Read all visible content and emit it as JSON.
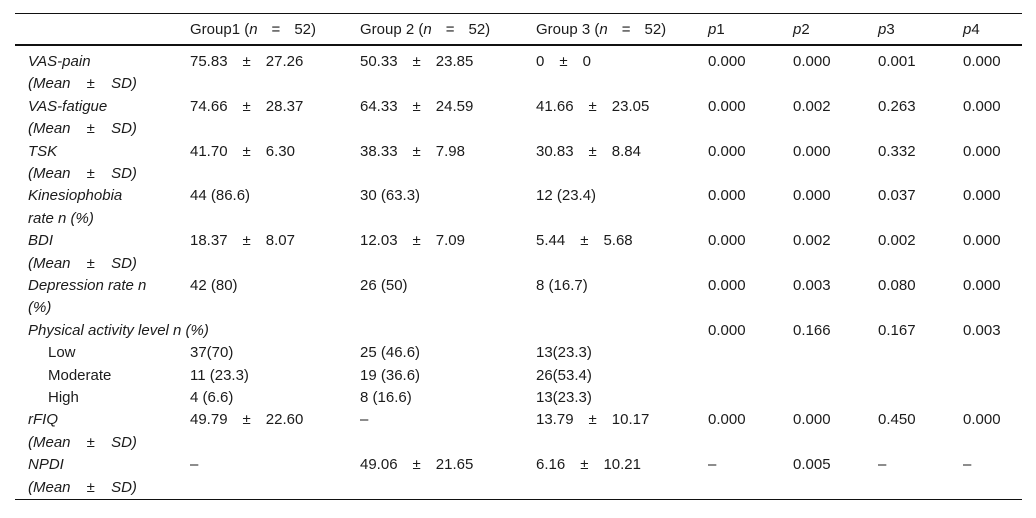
{
  "table": {
    "pm_symbol": "±",
    "colors": {
      "text": "#1b1b1b",
      "rule": "#111111",
      "background": "#ffffff"
    },
    "header": {
      "measure": "",
      "groups": [
        {
          "prefix": "Group1 (",
          "var": "n",
          "eq": "=",
          "count": "52)"
        },
        {
          "prefix": "Group 2 (",
          "var": "n",
          "eq": "=",
          "count": "52)"
        },
        {
          "prefix": "Group 3 (",
          "var": "n",
          "eq": "=",
          "count": "52)"
        }
      ],
      "p_columns": [
        {
          "var": "p",
          "index": "1"
        },
        {
          "var": "p",
          "index": "2"
        },
        {
          "var": "p",
          "index": "3"
        },
        {
          "var": "p",
          "index": "4"
        }
      ]
    },
    "rows": [
      {
        "label_lines": [
          "VAS-pain",
          "(Mean ± SD)"
        ],
        "italic": true,
        "indent": false,
        "groups": [
          {
            "mean": "75.83",
            "sd": "27.26"
          },
          {
            "mean": "50.33",
            "sd": "23.85"
          },
          {
            "mean": "0",
            "sd": "0"
          }
        ],
        "p": [
          "0.000",
          "0.000",
          "0.001",
          "0.000"
        ]
      },
      {
        "label_lines": [
          "VAS-fatigue",
          "(Mean ± SD)"
        ],
        "italic": true,
        "indent": false,
        "groups": [
          {
            "mean": "74.66",
            "sd": "28.37"
          },
          {
            "mean": "64.33",
            "sd": "24.59"
          },
          {
            "mean": "41.66",
            "sd": "23.05"
          }
        ],
        "p": [
          "0.000",
          "0.002",
          "0.263",
          "0.000"
        ]
      },
      {
        "label_lines": [
          "TSK",
          "(Mean ± SD)"
        ],
        "italic": true,
        "indent": false,
        "groups": [
          {
            "mean": "41.70",
            "sd": "6.30"
          },
          {
            "mean": "38.33",
            "sd": "7.98"
          },
          {
            "mean": "30.83",
            "sd": "8.84"
          }
        ],
        "p": [
          "0.000",
          "0.000",
          "0.332",
          "0.000"
        ]
      },
      {
        "label_lines": [
          "Kinesiophobia",
          "rate n (%)"
        ],
        "italic": true,
        "indent": false,
        "groups": [
          {
            "text": "44 (86.6)"
          },
          {
            "text": "30 (63.3)"
          },
          {
            "text": "12 (23.4)"
          }
        ],
        "p": [
          "0.000",
          "0.000",
          "0.037",
          "0.000"
        ]
      },
      {
        "label_lines": [
          "BDI",
          "(Mean ± SD)"
        ],
        "italic": true,
        "indent": false,
        "groups": [
          {
            "mean": "18.37",
            "sd": "8.07"
          },
          {
            "mean": "12.03",
            "sd": "7.09"
          },
          {
            "mean": "5.44",
            "sd": "5.68"
          }
        ],
        "p": [
          "0.000",
          "0.002",
          "0.002",
          "0.000"
        ]
      },
      {
        "label_lines": [
          "Depression rate n",
          "(%)"
        ],
        "italic": true,
        "indent": false,
        "groups": [
          {
            "text": "42 (80)"
          },
          {
            "text": "26 (50)"
          },
          {
            "text": "8 (16.7)"
          }
        ],
        "p": [
          "0.000",
          "0.003",
          "0.080",
          "0.000"
        ]
      },
      {
        "label_lines": [
          "Physical activity level n (%)"
        ],
        "italic": true,
        "indent": false,
        "groups": [
          {
            "text": ""
          },
          {
            "text": ""
          },
          {
            "text": ""
          }
        ],
        "p": [
          "0.000",
          "0.166",
          "0.167",
          "0.003"
        ]
      },
      {
        "label_lines": [
          "Low"
        ],
        "italic": false,
        "indent": true,
        "groups": [
          {
            "text": "37(70)"
          },
          {
            "text": "25 (46.6)"
          },
          {
            "text": "13(23.3)"
          }
        ],
        "p": [
          "",
          "",
          "",
          ""
        ]
      },
      {
        "label_lines": [
          "Moderate"
        ],
        "italic": false,
        "indent": true,
        "groups": [
          {
            "text": "11 (23.3)"
          },
          {
            "text": "19 (36.6)"
          },
          {
            "text": "26(53.4)"
          }
        ],
        "p": [
          "",
          "",
          "",
          ""
        ]
      },
      {
        "label_lines": [
          "High"
        ],
        "italic": false,
        "indent": true,
        "groups": [
          {
            "text": "4 (6.6)"
          },
          {
            "text": "8 (16.6)"
          },
          {
            "text": "13(23.3)"
          }
        ],
        "p": [
          "",
          "",
          "",
          ""
        ]
      },
      {
        "label_lines": [
          "rFIQ",
          "(Mean ± SD)"
        ],
        "italic": true,
        "indent": false,
        "groups": [
          {
            "mean": "49.79",
            "sd": "22.60"
          },
          {
            "text": "–"
          },
          {
            "mean": "13.79",
            "sd": "10.17"
          }
        ],
        "p": [
          "0.000",
          "0.000",
          "0.450",
          "0.000"
        ]
      },
      {
        "label_lines": [
          "NPDI",
          "(Mean ± SD)"
        ],
        "italic": true,
        "indent": false,
        "groups": [
          {
            "text": "–"
          },
          {
            "mean": "49.06",
            "sd": "21.65"
          },
          {
            "mean": "6.16",
            "sd": "10.21"
          }
        ],
        "p": [
          "–",
          "0.005",
          "–",
          "–"
        ]
      }
    ]
  }
}
